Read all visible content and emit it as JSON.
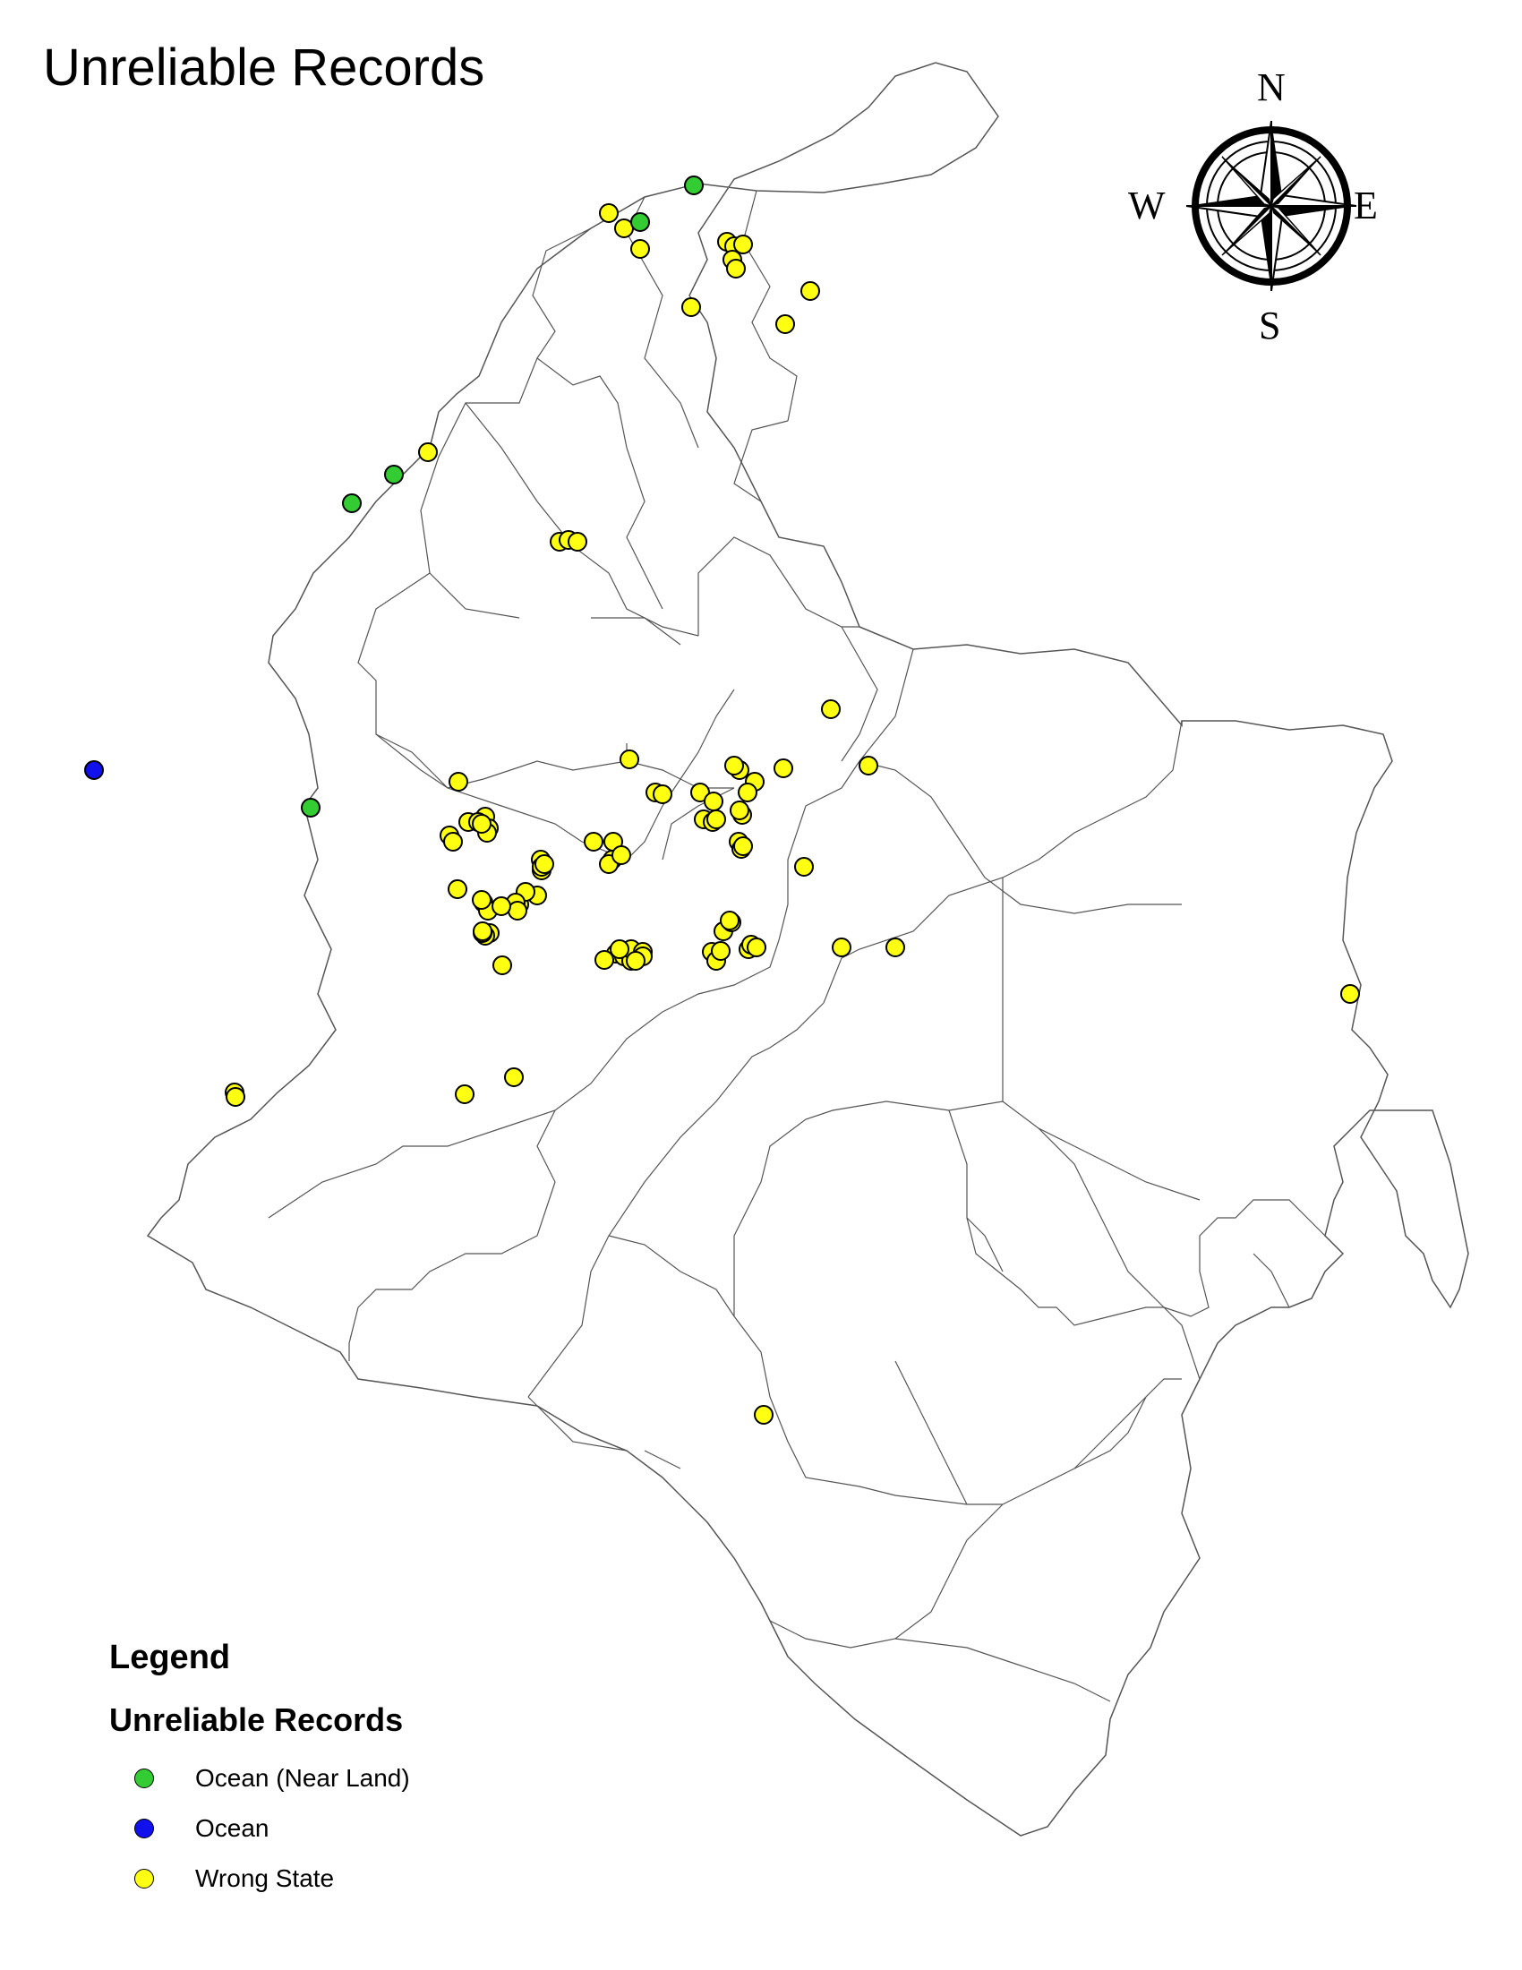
{
  "title": "Unreliable Records",
  "compass": {
    "north": "N",
    "south": "S",
    "east": "E",
    "west": "W",
    "icon": "compass-rose-icon"
  },
  "legend": {
    "title": "Legend",
    "layer_title": "Unreliable Records",
    "items": [
      {
        "label": "Ocean (Near Land)",
        "color": "#33cc33"
      },
      {
        "label": "Ocean",
        "color": "#1111ee"
      },
      {
        "label": "Wrong State",
        "color": "#ffff11"
      }
    ]
  }
}
